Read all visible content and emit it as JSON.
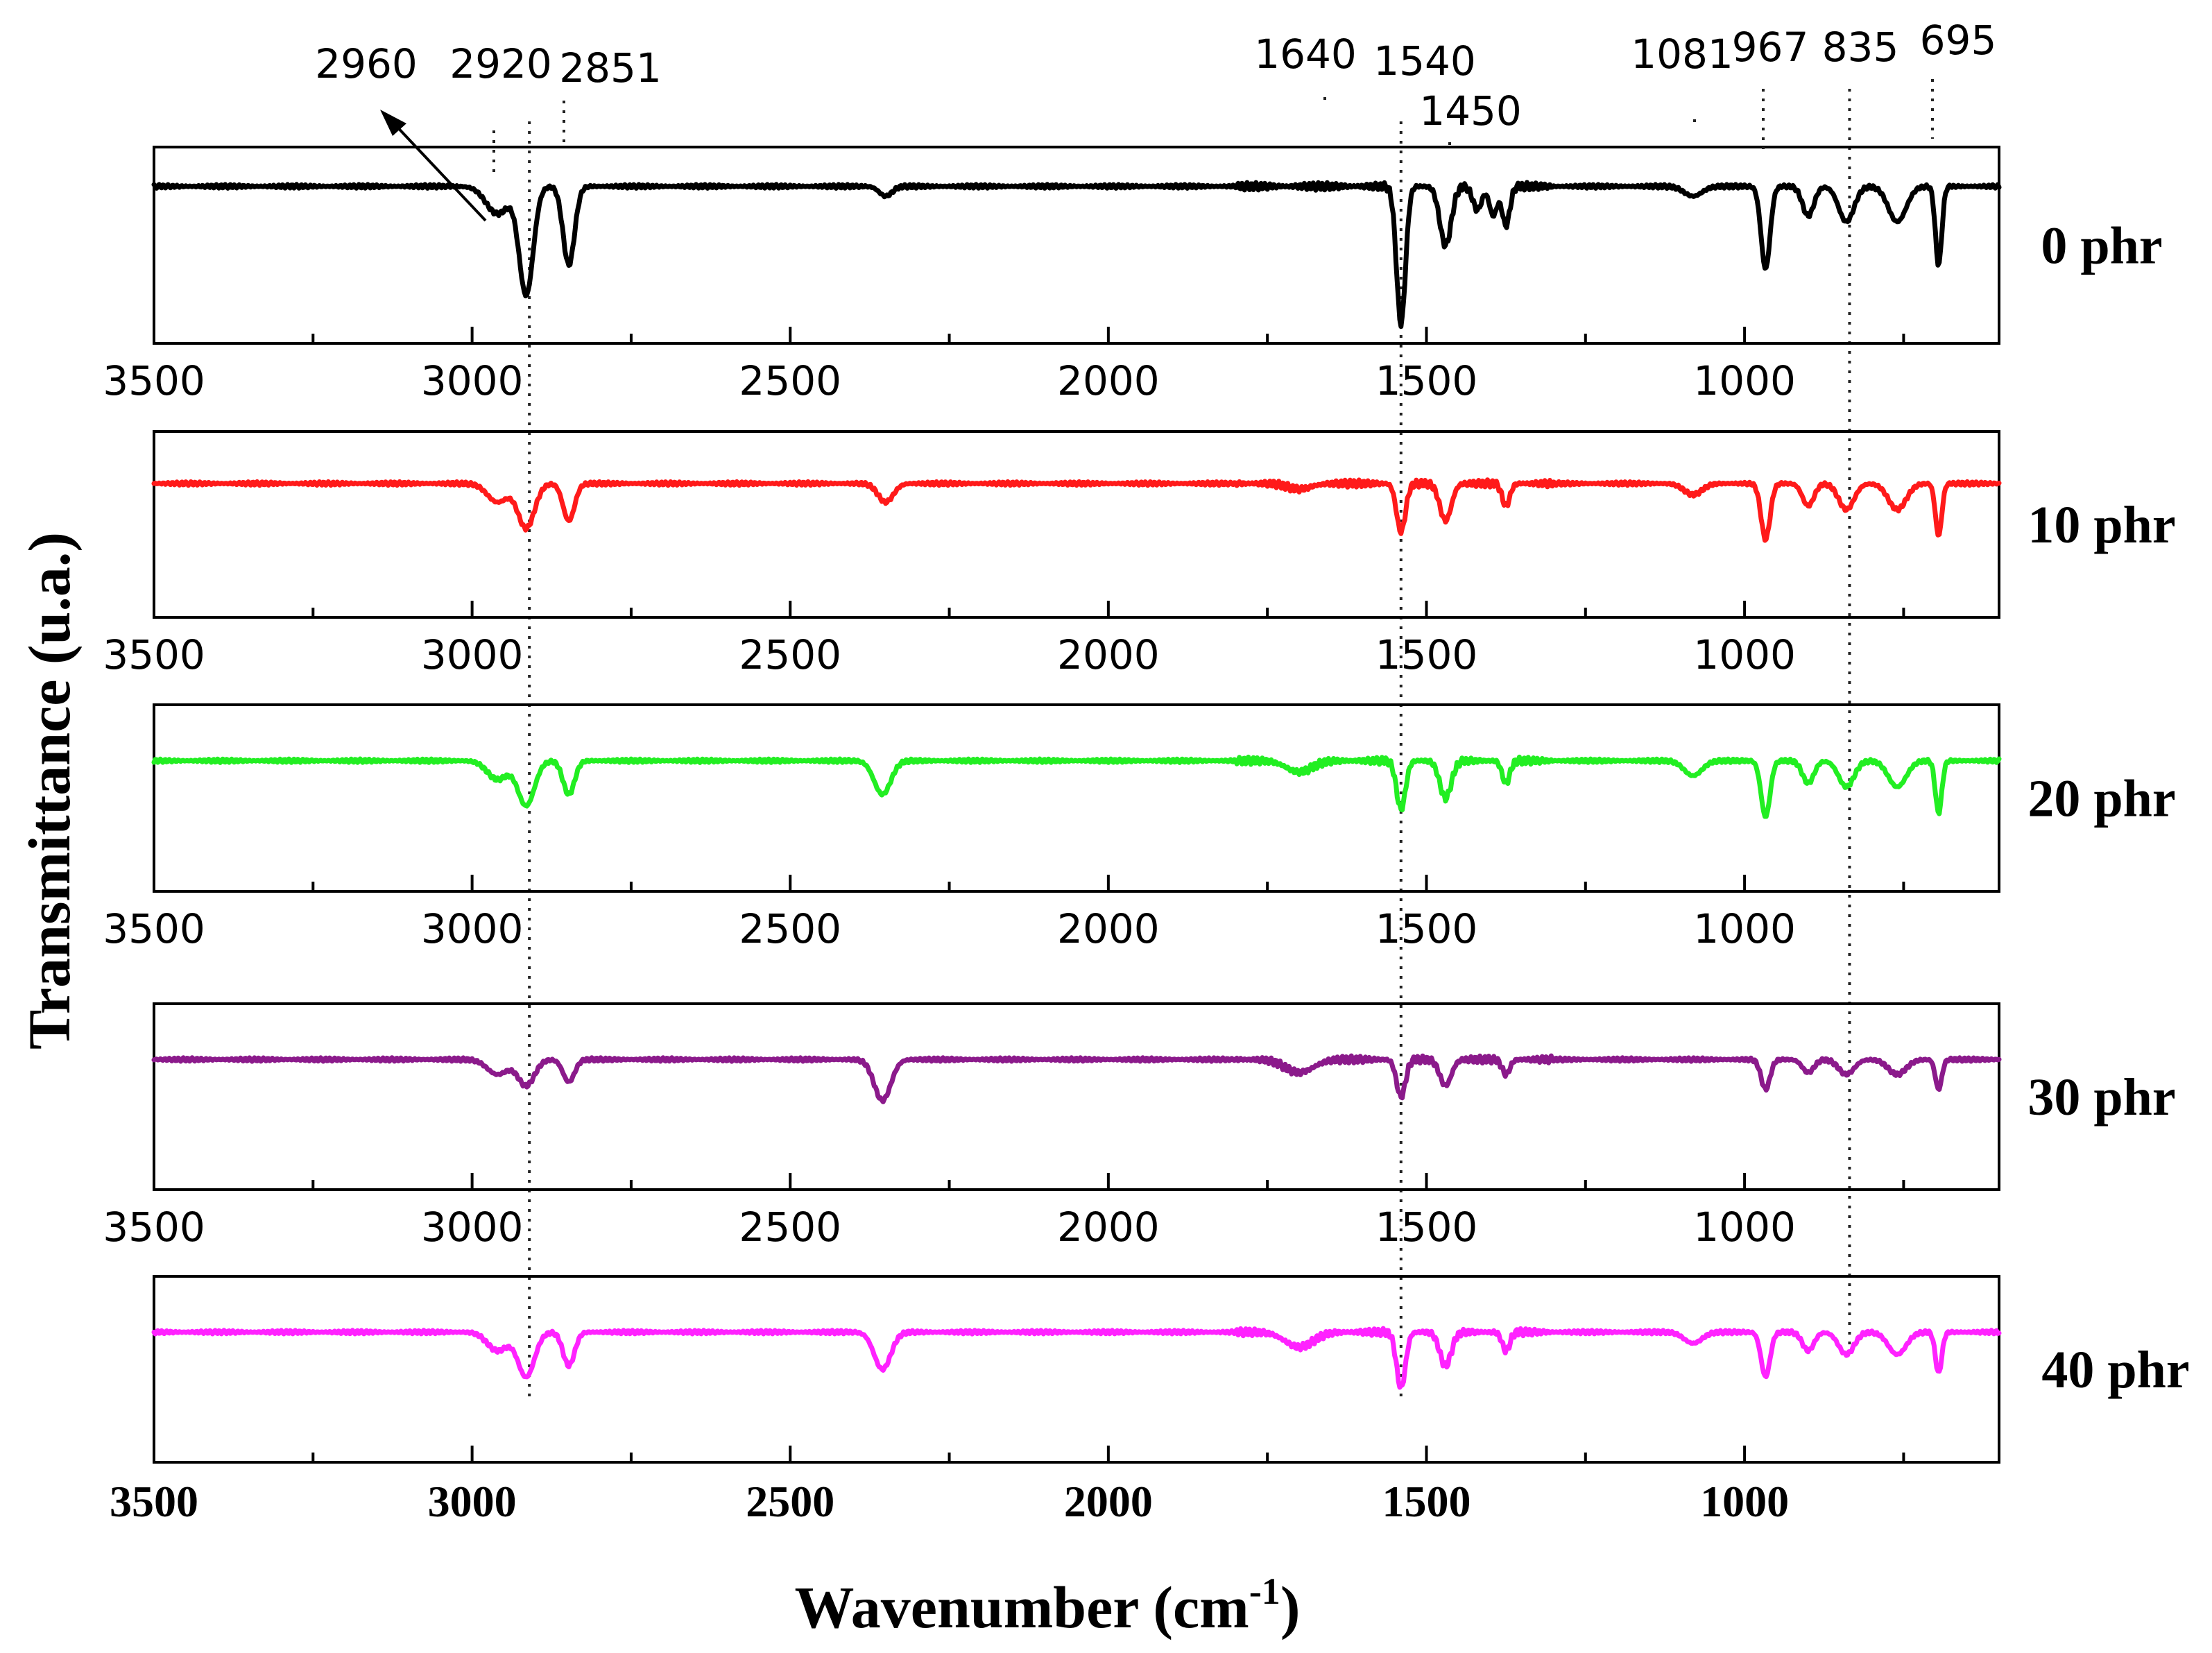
{
  "chart_data": {
    "type": "line",
    "title": "",
    "xlabel": "Wavenumber (cm-1)",
    "xlabel_main": "Wavenumber (cm",
    "xlabel_sup": "-1",
    "xlabel_end": ")",
    "ylabel": "Transmittance (u.a.)",
    "xlim": [
      3500,
      600
    ],
    "x_reversed": true,
    "x_ticks": [
      3500,
      3000,
      2500,
      2000,
      1500,
      1000
    ],
    "x_tick_labels": [
      "3500",
      "3000",
      "2500",
      "2000",
      "1500",
      "1000"
    ],
    "y_ticks_shown": false,
    "grid": false,
    "layout": "stacked-panels",
    "peak_labels": [
      {
        "label": "2960",
        "wavenumber": 2960
      },
      {
        "label": "2920",
        "wavenumber": 2920
      },
      {
        "label": "2851",
        "wavenumber": 2851
      },
      {
        "label": "1640",
        "wavenumber": 1640
      },
      {
        "label": "1540",
        "wavenumber": 1540
      },
      {
        "label": "1450",
        "wavenumber": 1450
      },
      {
        "label": "1081",
        "wavenumber": 1081
      },
      {
        "label": "967",
        "wavenumber": 967
      },
      {
        "label": "835",
        "wavenumber": 835
      },
      {
        "label": "695",
        "wavenumber": 695
      }
    ],
    "guide_lines": [
      2910,
      1540,
      835
    ],
    "series": [
      {
        "name": "0 phr",
        "color": "#000000",
        "baseline": 0.8,
        "bands": [
          {
            "center": 2960,
            "width": 18,
            "depth": 0.14
          },
          {
            "center": 2915,
            "width": 11,
            "depth": 0.55
          },
          {
            "center": 2848,
            "width": 9,
            "depth": 0.4
          },
          {
            "center": 2350,
            "width": 10,
            "depth": 0.05
          },
          {
            "center": 1540,
            "width": 7,
            "depth": 0.7
          },
          {
            "center": 1470,
            "width": 9,
            "depth": 0.3
          },
          {
            "center": 1420,
            "width": 7,
            "depth": 0.12
          },
          {
            "center": 1395,
            "width": 6,
            "depth": 0.15
          },
          {
            "center": 1375,
            "width": 6,
            "depth": 0.2
          },
          {
            "center": 1081,
            "width": 14,
            "depth": 0.05
          },
          {
            "center": 967,
            "width": 7,
            "depth": 0.42
          },
          {
            "center": 900,
            "width": 9,
            "depth": 0.15
          },
          {
            "center": 840,
            "width": 12,
            "depth": 0.18
          },
          {
            "center": 760,
            "width": 14,
            "depth": 0.18
          },
          {
            "center": 695,
            "width": 5,
            "depth": 0.4
          }
        ]
      },
      {
        "name": "10 phr",
        "color": "#ff1a1a",
        "baseline": 0.72,
        "bands": [
          {
            "center": 2960,
            "width": 16,
            "depth": 0.1
          },
          {
            "center": 2915,
            "width": 13,
            "depth": 0.24
          },
          {
            "center": 2848,
            "width": 9,
            "depth": 0.2
          },
          {
            "center": 2350,
            "width": 12,
            "depth": 0.1
          },
          {
            "center": 1700,
            "width": 18,
            "depth": 0.03
          },
          {
            "center": 1540,
            "width": 7,
            "depth": 0.26
          },
          {
            "center": 1470,
            "width": 9,
            "depth": 0.2
          },
          {
            "center": 1375,
            "width": 6,
            "depth": 0.12
          },
          {
            "center": 1081,
            "width": 14,
            "depth": 0.06
          },
          {
            "center": 967,
            "width": 7,
            "depth": 0.3
          },
          {
            "center": 900,
            "width": 9,
            "depth": 0.12
          },
          {
            "center": 840,
            "width": 12,
            "depth": 0.14
          },
          {
            "center": 760,
            "width": 14,
            "depth": 0.14
          },
          {
            "center": 695,
            "width": 5,
            "depth": 0.28
          }
        ]
      },
      {
        "name": "20 phr",
        "color": "#22ee22",
        "baseline": 0.7,
        "bands": [
          {
            "center": 2960,
            "width": 16,
            "depth": 0.1
          },
          {
            "center": 2915,
            "width": 13,
            "depth": 0.24
          },
          {
            "center": 2848,
            "width": 9,
            "depth": 0.18
          },
          {
            "center": 2355,
            "width": 13,
            "depth": 0.18
          },
          {
            "center": 1700,
            "width": 20,
            "depth": 0.06
          },
          {
            "center": 1540,
            "width": 7,
            "depth": 0.26
          },
          {
            "center": 1470,
            "width": 9,
            "depth": 0.2
          },
          {
            "center": 1375,
            "width": 6,
            "depth": 0.12
          },
          {
            "center": 1081,
            "width": 14,
            "depth": 0.08
          },
          {
            "center": 967,
            "width": 7,
            "depth": 0.3
          },
          {
            "center": 900,
            "width": 9,
            "depth": 0.12
          },
          {
            "center": 840,
            "width": 12,
            "depth": 0.14
          },
          {
            "center": 760,
            "width": 14,
            "depth": 0.14
          },
          {
            "center": 695,
            "width": 5,
            "depth": 0.28
          }
        ]
      },
      {
        "name": "30 phr",
        "color": "#8b1a8b",
        "baseline": 0.7,
        "bands": [
          {
            "center": 2960,
            "width": 16,
            "depth": 0.08
          },
          {
            "center": 2915,
            "width": 13,
            "depth": 0.14
          },
          {
            "center": 2848,
            "width": 9,
            "depth": 0.12
          },
          {
            "center": 2355,
            "width": 13,
            "depth": 0.22
          },
          {
            "center": 1700,
            "width": 22,
            "depth": 0.07
          },
          {
            "center": 1540,
            "width": 7,
            "depth": 0.2
          },
          {
            "center": 1470,
            "width": 9,
            "depth": 0.14
          },
          {
            "center": 1375,
            "width": 6,
            "depth": 0.08
          },
          {
            "center": 967,
            "width": 7,
            "depth": 0.16
          },
          {
            "center": 900,
            "width": 9,
            "depth": 0.07
          },
          {
            "center": 840,
            "width": 12,
            "depth": 0.08
          },
          {
            "center": 760,
            "width": 14,
            "depth": 0.08
          },
          {
            "center": 695,
            "width": 5,
            "depth": 0.16
          }
        ]
      },
      {
        "name": "40 phr",
        "color": "#ff22ff",
        "baseline": 0.7,
        "bands": [
          {
            "center": 2960,
            "width": 16,
            "depth": 0.1
          },
          {
            "center": 2915,
            "width": 13,
            "depth": 0.24
          },
          {
            "center": 2848,
            "width": 9,
            "depth": 0.18
          },
          {
            "center": 2355,
            "width": 13,
            "depth": 0.2
          },
          {
            "center": 1700,
            "width": 22,
            "depth": 0.08
          },
          {
            "center": 1540,
            "width": 7,
            "depth": 0.3
          },
          {
            "center": 1470,
            "width": 9,
            "depth": 0.18
          },
          {
            "center": 1375,
            "width": 6,
            "depth": 0.1
          },
          {
            "center": 1081,
            "width": 14,
            "depth": 0.06
          },
          {
            "center": 967,
            "width": 7,
            "depth": 0.24
          },
          {
            "center": 900,
            "width": 9,
            "depth": 0.1
          },
          {
            "center": 840,
            "width": 12,
            "depth": 0.12
          },
          {
            "center": 760,
            "width": 14,
            "depth": 0.12
          },
          {
            "center": 695,
            "width": 5,
            "depth": 0.22
          }
        ]
      }
    ]
  }
}
